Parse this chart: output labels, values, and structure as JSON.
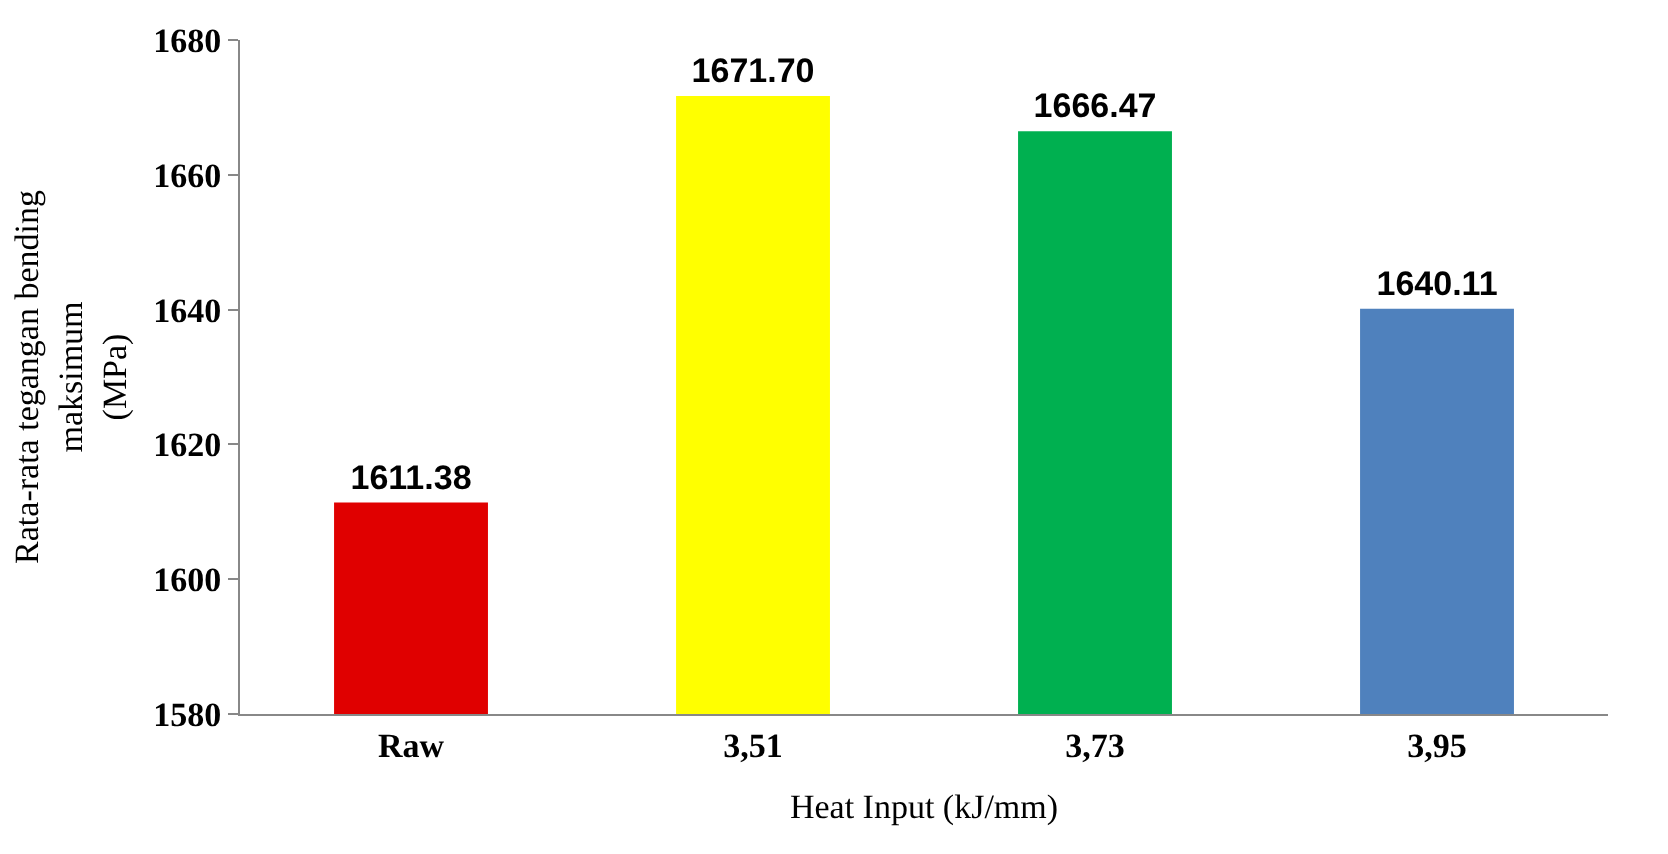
{
  "chart_data": {
    "type": "bar",
    "xlabel": "Heat Input (kJ/mm)",
    "ylabel": "Rata-rata tegangan bending\nmaksimum\n(MPa)",
    "categories": [
      "Raw",
      "3,51",
      "3,73",
      "3,95"
    ],
    "values": [
      1611.38,
      1671.7,
      1666.47,
      1640.11
    ],
    "value_labels": [
      "1611.38",
      "1671.70",
      "1666.47",
      "1640.11"
    ],
    "colors": [
      "#e00000",
      "#ffff00",
      "#00b050",
      "#4f81bd"
    ],
    "ylim": [
      1580,
      1680
    ],
    "yticks": [
      1580,
      1600,
      1620,
      1640,
      1660,
      1680
    ],
    "legend": false
  }
}
